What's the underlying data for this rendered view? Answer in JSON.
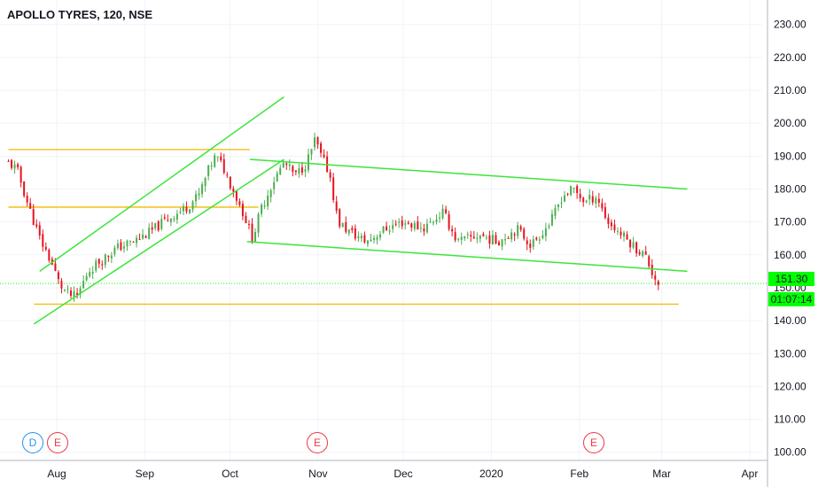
{
  "header": {
    "title": "APOLLO TYRES, 120, NSE"
  },
  "price_labels": {
    "last_price": "151.30",
    "timer": "01:07:14"
  },
  "markers": [
    {
      "label": "D",
      "kind": "dividend"
    },
    {
      "label": "E",
      "kind": "earnings"
    },
    {
      "label": "E",
      "kind": "earnings"
    },
    {
      "label": "E",
      "kind": "earnings"
    }
  ],
  "colors": {
    "up": "#4caf50",
    "down": "#e5131d",
    "trendline": "#39e639",
    "level": "#f5b800",
    "last_price": "#00ff00",
    "grid": "#f0f3fa",
    "text": "#131722"
  },
  "chart_data": {
    "type": "candlestick",
    "title": "APOLLO TYRES, 120, NSE",
    "ylim": [
      96,
      236
    ],
    "x_ticks": [
      "Aug",
      "Sep",
      "Oct",
      "Nov",
      "Dec",
      "2020",
      "Feb",
      "Mar",
      "Apr"
    ],
    "y_ticks": [
      "100.00",
      "110.00",
      "120.00",
      "130.00",
      "140.00",
      "150.00",
      "160.00",
      "170.00",
      "180.00",
      "190.00",
      "200.00",
      "210.00",
      "220.00",
      "230.00"
    ],
    "grid": true,
    "last_price": 151.3,
    "close_path": [
      [
        "2019-07-15",
        188
      ],
      [
        "2019-07-18",
        186
      ],
      [
        "2019-07-22",
        175
      ],
      [
        "2019-07-26",
        165
      ],
      [
        "2019-07-30",
        158
      ],
      [
        "2019-08-02",
        151
      ],
      [
        "2019-08-05",
        148
      ],
      [
        "2019-08-08",
        147
      ],
      [
        "2019-08-12",
        155
      ],
      [
        "2019-08-16",
        158
      ],
      [
        "2019-08-22",
        162
      ],
      [
        "2019-08-28",
        164
      ],
      [
        "2019-09-03",
        167
      ],
      [
        "2019-09-09",
        171
      ],
      [
        "2019-09-15",
        174
      ],
      [
        "2019-09-20",
        178
      ],
      [
        "2019-09-24",
        187
      ],
      [
        "2019-09-26",
        190
      ],
      [
        "2019-09-29",
        186
      ],
      [
        "2019-10-02",
        180
      ],
      [
        "2019-10-06",
        172
      ],
      [
        "2019-10-09",
        165
      ],
      [
        "2019-10-12",
        174
      ],
      [
        "2019-10-16",
        182
      ],
      [
        "2019-10-20",
        188
      ],
      [
        "2019-10-24",
        184
      ],
      [
        "2019-10-28",
        188
      ],
      [
        "2019-10-31",
        195
      ],
      [
        "2019-11-02",
        190
      ],
      [
        "2019-11-05",
        185
      ],
      [
        "2019-11-08",
        170
      ],
      [
        "2019-11-12",
        167
      ],
      [
        "2019-11-18",
        164
      ],
      [
        "2019-11-25",
        168
      ],
      [
        "2019-12-01",
        170
      ],
      [
        "2019-12-08",
        168
      ],
      [
        "2019-12-15",
        173
      ],
      [
        "2019-12-20",
        164
      ],
      [
        "2019-12-28",
        166
      ],
      [
        "2020-01-03",
        164
      ],
      [
        "2020-01-10",
        168
      ],
      [
        "2020-01-15",
        163
      ],
      [
        "2020-01-22",
        170
      ],
      [
        "2020-01-26",
        178
      ],
      [
        "2020-01-30",
        180
      ],
      [
        "2020-02-03",
        176
      ],
      [
        "2020-02-07",
        178
      ],
      [
        "2020-02-11",
        170
      ],
      [
        "2020-02-16",
        166
      ],
      [
        "2020-02-21",
        162
      ],
      [
        "2020-02-24",
        160
      ],
      [
        "2020-02-27",
        154
      ],
      [
        "2020-02-29",
        151.3
      ]
    ],
    "trendlines": [
      {
        "color": "trendline",
        "points": [
          [
            "2019-07-26",
            155
          ],
          [
            "2019-10-20",
            208
          ]
        ]
      },
      {
        "color": "trendline",
        "points": [
          [
            "2019-07-24",
            139
          ],
          [
            "2019-10-20",
            189
          ]
        ]
      },
      {
        "color": "trendline",
        "points": [
          [
            "2019-10-08",
            189
          ],
          [
            "2020-03-10",
            180
          ]
        ]
      },
      {
        "color": "trendline",
        "points": [
          [
            "2019-10-07",
            164
          ],
          [
            "2020-03-10",
            155
          ]
        ]
      }
    ],
    "levels": [
      {
        "color": "level",
        "value": 192,
        "from": "2019-07-15",
        "to": "2019-10-08"
      },
      {
        "color": "level",
        "value": 174.5,
        "from": "2019-07-15",
        "to": "2019-10-11"
      },
      {
        "color": "level",
        "value": 145,
        "from": "2019-07-24",
        "to": "2020-03-07"
      }
    ],
    "events": [
      {
        "label": "D",
        "date": "2019-07-27"
      },
      {
        "label": "E",
        "date": "2019-08-02"
      },
      {
        "label": "E",
        "date": "2019-11-01"
      },
      {
        "label": "E",
        "date": "2020-02-19"
      }
    ]
  }
}
